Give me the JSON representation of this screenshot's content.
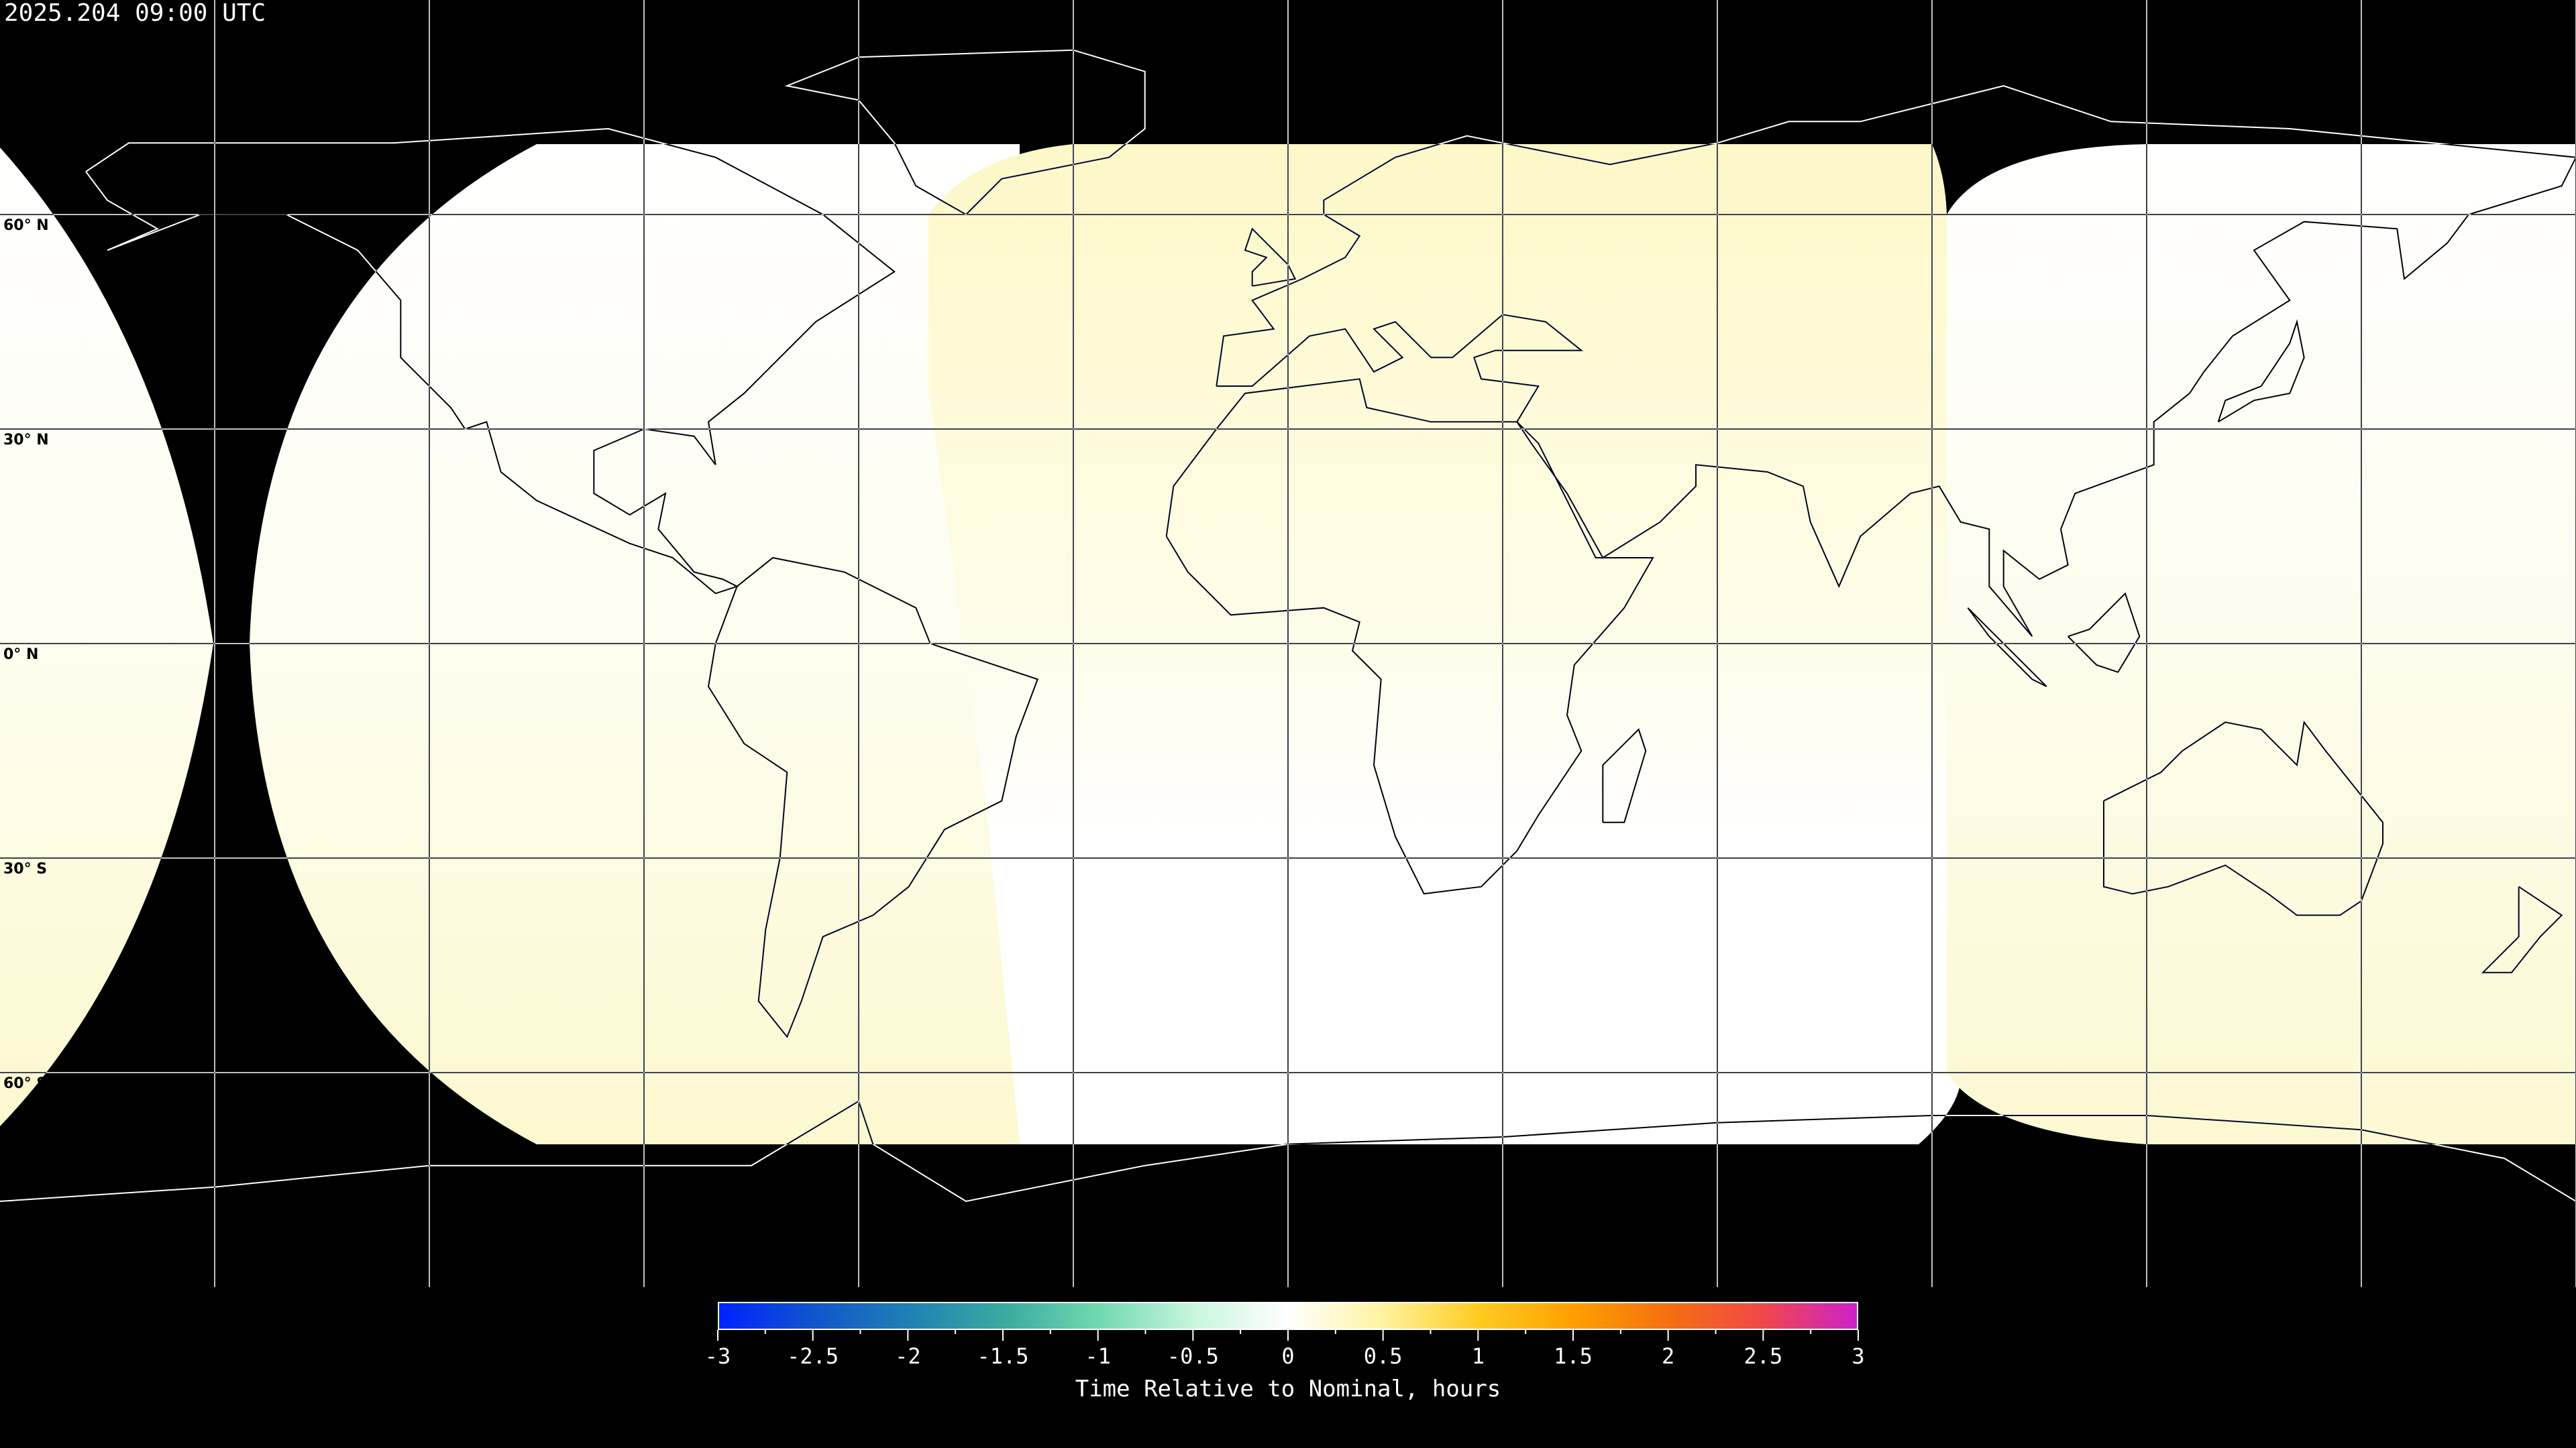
{
  "title": "2025.204 09:00 UTC",
  "map": {
    "projection": "equirectangular",
    "lon_range": [
      -180,
      180
    ],
    "lat_range": [
      -90,
      90
    ],
    "grid_spacing_deg": 30,
    "lat_labels": [
      "60° N",
      "30° N",
      "0° N",
      "30° S",
      "60° S"
    ],
    "colors": {
      "background": "#000000",
      "coverage_warm": "#fdfbd8",
      "coverage_neutral": "#ffffff",
      "coastline": "#ffffff",
      "grid": "#ffffff"
    }
  },
  "colorbar": {
    "min": -3,
    "max": 3,
    "tick_labels": [
      "-3",
      "-2.5",
      "-2",
      "-1.5",
      "-1",
      "-0.5",
      "0",
      "0.5",
      "1",
      "1.5",
      "2",
      "2.5",
      "3"
    ],
    "label": "Time Relative to Nominal, hours",
    "colors": [
      "#0022ff",
      "#1155cc",
      "#1f80b5",
      "#3aaaa0",
      "#70d8b0",
      "#c8f5dc",
      "#ffffff",
      "#fff3a0",
      "#ffcc22",
      "#ffa000",
      "#f57010",
      "#f04848",
      "#cc22cc"
    ]
  }
}
